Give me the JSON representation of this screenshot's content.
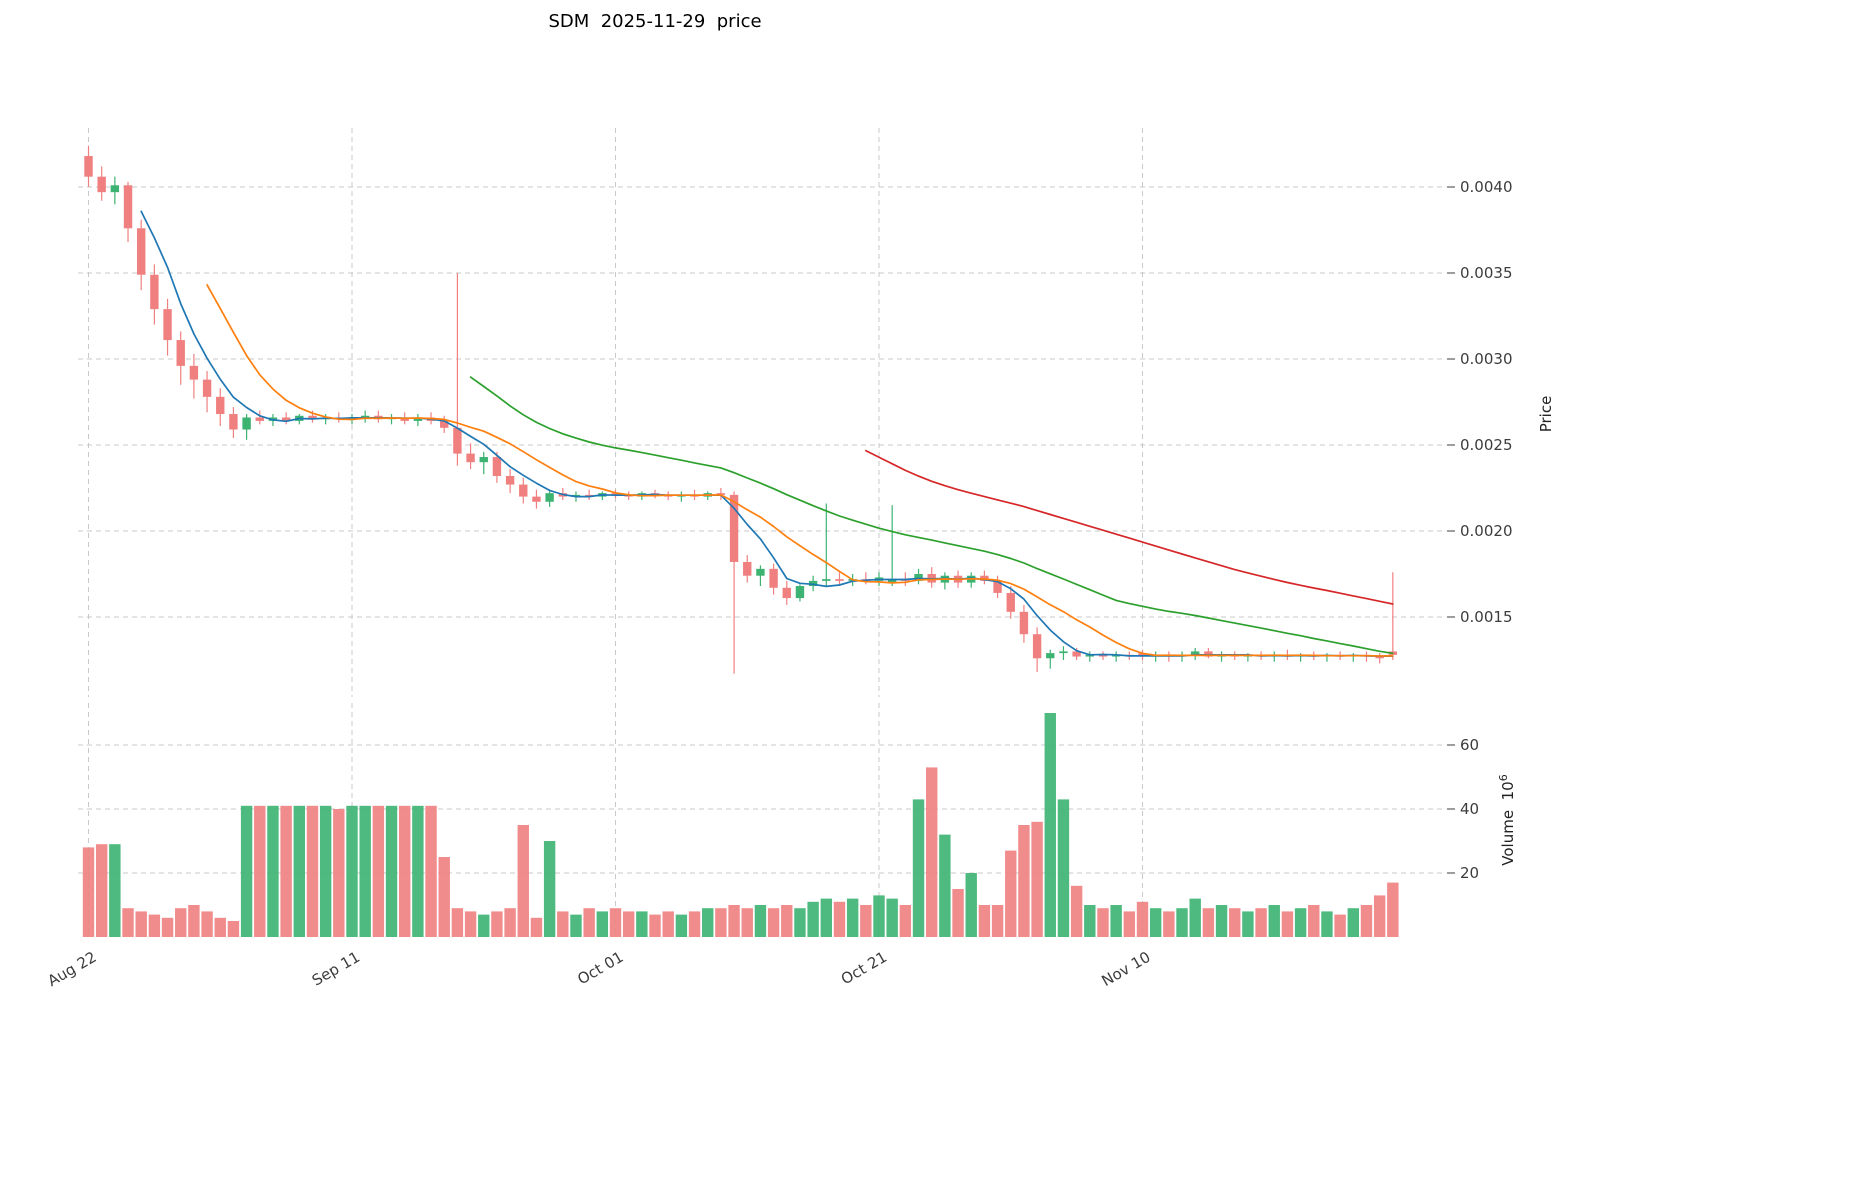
{
  "chart_data": {
    "type": "candlestick+volume",
    "title": "SDM  2025-11-29  price",
    "price_axis": {
      "label": "Price",
      "tick_values": [
        0.004,
        0.0035,
        0.003,
        0.0025,
        0.002,
        0.0015
      ],
      "tick_labels": [
        "0.0040",
        "0.0035",
        "0.0030",
        "0.0025",
        "0.0020",
        "0.0015"
      ]
    },
    "volume_axis": {
      "label": "Volume",
      "label_base": "10",
      "label_exponent": "6",
      "tick_values": [
        60,
        40,
        20
      ],
      "tick_labels": [
        "60",
        "40",
        "20"
      ]
    },
    "x_ticks": [
      {
        "index": 0,
        "label": "Aug 22"
      },
      {
        "index": 20,
        "label": "Sep 11"
      },
      {
        "index": 40,
        "label": "Oct 01"
      },
      {
        "index": 60,
        "label": "Oct 21"
      },
      {
        "index": 80,
        "label": "Nov 10"
      }
    ],
    "moving_averages": [
      {
        "window": 5,
        "color": "#1f77b4"
      },
      {
        "window": 10,
        "color": "#ff7f0e"
      },
      {
        "window": 30,
        "color": "#2ca02c"
      },
      {
        "window": 60,
        "color": "#d62728"
      }
    ],
    "colors": {
      "up": "#3CB371",
      "down": "#F08080",
      "grid": "#c9c9c9",
      "tick_text": "#3c3c3c",
      "title_text": "#000000",
      "background": "#ffffff"
    },
    "candles": {
      "open": [
        0.00418,
        0.00406,
        0.00397,
        0.00401,
        0.00376,
        0.00349,
        0.00329,
        0.00311,
        0.00296,
        0.00288,
        0.00278,
        0.00268,
        0.00259,
        0.00266,
        0.00264,
        0.00266,
        0.00264,
        0.00267,
        0.00265,
        0.00266,
        0.00265,
        0.00266,
        0.00267,
        0.00265,
        0.00266,
        0.00264,
        0.00266,
        0.00264,
        0.0026,
        0.00245,
        0.0024,
        0.00243,
        0.00232,
        0.00227,
        0.0022,
        0.00217,
        0.00222,
        0.0022,
        0.00221,
        0.0022,
        0.00222,
        0.00221,
        0.0022,
        0.00222,
        0.00221,
        0.0022,
        0.00221,
        0.0022,
        0.00222,
        0.00221,
        0.00182,
        0.00174,
        0.00178,
        0.00167,
        0.00161,
        0.00168,
        0.00171,
        0.00172,
        0.00171,
        0.00172,
        0.00171,
        0.0017,
        0.00172,
        0.00171,
        0.00175,
        0.0017,
        0.00174,
        0.0017,
        0.00174,
        0.00171,
        0.00164,
        0.00153,
        0.0014,
        0.00126,
        0.00129,
        0.0013,
        0.00127,
        0.00128,
        0.00127,
        0.00128,
        0.00129,
        0.00127,
        0.00128,
        0.00127,
        0.00128,
        0.0013,
        0.00127,
        0.00128,
        0.00127,
        0.00128,
        0.00127,
        0.00128,
        0.00127,
        0.00128,
        0.00127,
        0.00128,
        0.00127,
        0.00128,
        0.00127,
        0.0013
      ],
      "high": [
        0.00424,
        0.00412,
        0.00406,
        0.00403,
        0.00381,
        0.00355,
        0.00335,
        0.00316,
        0.00303,
        0.00293,
        0.00283,
        0.00272,
        0.00268,
        0.0027,
        0.00268,
        0.00269,
        0.00268,
        0.0027,
        0.00268,
        0.00269,
        0.00268,
        0.0027,
        0.0027,
        0.00268,
        0.00269,
        0.00268,
        0.00269,
        0.00267,
        0.0035,
        0.00251,
        0.00246,
        0.00246,
        0.00236,
        0.00231,
        0.00224,
        0.00224,
        0.00225,
        0.00223,
        0.00224,
        0.00223,
        0.00224,
        0.00223,
        0.00223,
        0.00224,
        0.00223,
        0.00223,
        0.00224,
        0.00223,
        0.00225,
        0.00223,
        0.00186,
        0.0018,
        0.00181,
        0.00171,
        0.00169,
        0.00174,
        0.00216,
        0.00176,
        0.00175,
        0.00176,
        0.00176,
        0.00215,
        0.00176,
        0.00178,
        0.00179,
        0.00176,
        0.00177,
        0.00176,
        0.00177,
        0.00174,
        0.00168,
        0.00157,
        0.00144,
        0.00131,
        0.00133,
        0.00132,
        0.0013,
        0.0013,
        0.0013,
        0.0013,
        0.00131,
        0.0013,
        0.0013,
        0.0013,
        0.00132,
        0.00132,
        0.0013,
        0.0013,
        0.00129,
        0.0013,
        0.0013,
        0.00131,
        0.00129,
        0.0013,
        0.00129,
        0.0013,
        0.00129,
        0.0013,
        0.00129,
        0.00176
      ],
      "low": [
        0.004,
        0.00392,
        0.0039,
        0.00368,
        0.0034,
        0.0032,
        0.00302,
        0.00285,
        0.00277,
        0.00269,
        0.00261,
        0.00254,
        0.00253,
        0.00262,
        0.00261,
        0.00262,
        0.00262,
        0.00263,
        0.00262,
        0.00263,
        0.00262,
        0.00263,
        0.00263,
        0.00262,
        0.00262,
        0.00261,
        0.00262,
        0.00257,
        0.00238,
        0.00236,
        0.00233,
        0.00228,
        0.00222,
        0.00216,
        0.00213,
        0.00214,
        0.00218,
        0.00217,
        0.00218,
        0.00218,
        0.00219,
        0.00218,
        0.00218,
        0.00219,
        0.00218,
        0.00217,
        0.00218,
        0.00218,
        0.00218,
        0.00117,
        0.0017,
        0.00168,
        0.00163,
        0.00157,
        0.00159,
        0.00165,
        0.00168,
        0.00169,
        0.00168,
        0.00169,
        0.00168,
        0.00168,
        0.00168,
        0.00169,
        0.00167,
        0.00166,
        0.00167,
        0.00167,
        0.00169,
        0.00161,
        0.00149,
        0.00135,
        0.00118,
        0.0012,
        0.00125,
        0.00125,
        0.00124,
        0.00125,
        0.00124,
        0.00125,
        0.00125,
        0.00124,
        0.00124,
        0.00124,
        0.00125,
        0.00126,
        0.00124,
        0.00125,
        0.00124,
        0.00125,
        0.00124,
        0.00125,
        0.00124,
        0.00125,
        0.00124,
        0.00125,
        0.00124,
        0.00124,
        0.00123,
        0.00125
      ],
      "close": [
        0.00406,
        0.00397,
        0.00401,
        0.00376,
        0.00349,
        0.00329,
        0.00311,
        0.00296,
        0.00288,
        0.00278,
        0.00268,
        0.00259,
        0.00266,
        0.00264,
        0.00266,
        0.00264,
        0.00267,
        0.00265,
        0.00266,
        0.00265,
        0.00266,
        0.00267,
        0.00265,
        0.00266,
        0.00264,
        0.00266,
        0.00264,
        0.0026,
        0.00245,
        0.0024,
        0.00243,
        0.00232,
        0.00227,
        0.0022,
        0.00217,
        0.00222,
        0.0022,
        0.00221,
        0.0022,
        0.00222,
        0.00221,
        0.0022,
        0.00222,
        0.00221,
        0.0022,
        0.00221,
        0.0022,
        0.00222,
        0.00221,
        0.00182,
        0.00174,
        0.00178,
        0.00167,
        0.00161,
        0.00168,
        0.00171,
        0.00172,
        0.00171,
        0.00172,
        0.00171,
        0.00173,
        0.00172,
        0.00171,
        0.00175,
        0.0017,
        0.00174,
        0.0017,
        0.00174,
        0.00171,
        0.00164,
        0.00153,
        0.0014,
        0.00126,
        0.00129,
        0.0013,
        0.00127,
        0.00128,
        0.00127,
        0.00128,
        0.00127,
        0.00127,
        0.00128,
        0.00127,
        0.00128,
        0.0013,
        0.00127,
        0.00128,
        0.00127,
        0.00128,
        0.00127,
        0.00128,
        0.00127,
        0.00128,
        0.00127,
        0.00128,
        0.00127,
        0.00128,
        0.00127,
        0.00126,
        0.00128
      ]
    },
    "volume_millions": [
      28,
      29,
      29,
      9,
      8,
      7,
      6,
      9,
      10,
      8,
      6,
      5,
      41,
      41,
      41,
      41,
      41,
      41,
      41,
      40,
      41,
      41,
      41,
      41,
      41,
      41,
      41,
      25,
      9,
      8,
      7,
      8,
      9,
      35,
      6,
      30,
      8,
      7,
      9,
      8,
      9,
      8,
      8,
      7,
      8,
      7,
      8,
      9,
      9,
      10,
      9,
      10,
      9,
      10,
      9,
      11,
      12,
      11,
      12,
      10,
      13,
      12,
      10,
      43,
      53,
      32,
      15,
      20,
      10,
      10,
      27,
      35,
      36,
      70,
      43,
      16,
      10,
      9,
      10,
      8,
      11,
      9,
      8,
      9,
      12,
      9,
      10,
      9,
      8,
      9,
      10,
      8,
      9,
      10,
      8,
      7,
      9,
      10,
      13,
      17
    ]
  }
}
